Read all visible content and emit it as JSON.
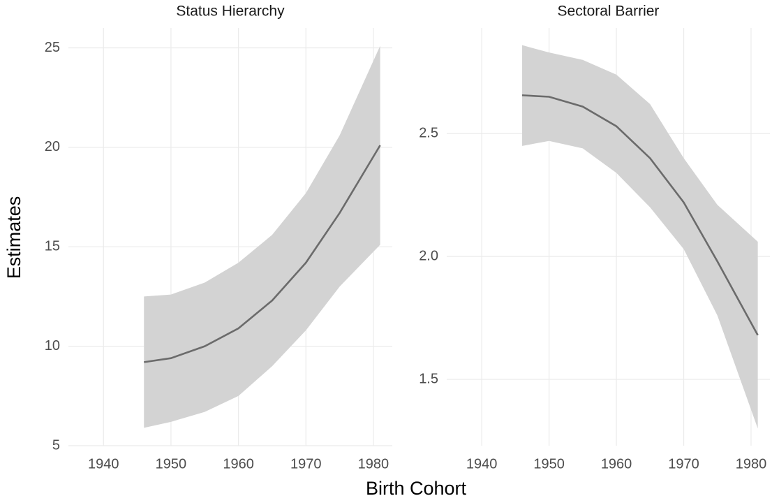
{
  "x_label": "Birth Cohort",
  "y_label": "Estimates",
  "chart_data": [
    {
      "type": "line",
      "title": "Status Hierarchy",
      "x": [
        1946,
        1950,
        1955,
        1960,
        1965,
        1970,
        1975,
        1981
      ],
      "series": [
        {
          "color": "#6b6b6b",
          "band_color": "#d3d3d3",
          "values": [
            9.2,
            9.4,
            10.0,
            10.9,
            12.3,
            14.2,
            16.7,
            20.1
          ],
          "lower": [
            5.9,
            6.2,
            6.7,
            7.5,
            9.0,
            10.8,
            13.0,
            15.1
          ],
          "upper": [
            12.5,
            12.6,
            13.2,
            14.2,
            15.6,
            17.7,
            20.6,
            25.1
          ]
        }
      ],
      "xlim": [
        1934.8,
        1982.8
      ],
      "xticks": [
        1940,
        1950,
        1960,
        1970,
        1980
      ],
      "ylim": [
        5,
        26
      ],
      "yticks": [
        5,
        10,
        15,
        20,
        25
      ],
      "grid": true
    },
    {
      "type": "line",
      "title": "Sectoral Barrier",
      "x": [
        1946,
        1950,
        1955,
        1960,
        1965,
        1970,
        1975,
        1981
      ],
      "series": [
        {
          "color": "#6b6b6b",
          "band_color": "#d3d3d3",
          "values": [
            2.656,
            2.65,
            2.61,
            2.53,
            2.4,
            2.22,
            1.98,
            1.68
          ],
          "lower": [
            2.45,
            2.47,
            2.44,
            2.34,
            2.2,
            2.03,
            1.76,
            1.3
          ],
          "upper": [
            2.86,
            2.83,
            2.8,
            2.74,
            2.62,
            2.4,
            2.21,
            2.06
          ]
        }
      ],
      "xlim": [
        1934.8,
        1982.8
      ],
      "xticks": [
        1940,
        1950,
        1960,
        1970,
        1980
      ],
      "ylim": [
        1.23,
        2.93
      ],
      "yticks": [
        1.5,
        {
          "value": 2,
          "label": "2.0"
        },
        2.5
      ],
      "grid": true
    }
  ]
}
